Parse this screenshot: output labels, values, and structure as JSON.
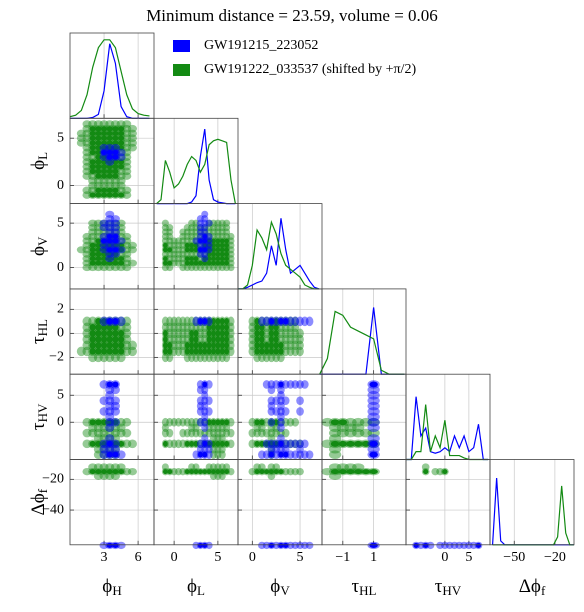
{
  "chart_data": {
    "type": "corner",
    "title": "Minimum distance = 23.59, volume = 0.06",
    "series": [
      {
        "name": "GW191215_223052",
        "color": "#0000ff",
        "density": [
          [
            0,
            0,
            0,
            0,
            0.01,
            0.05,
            0.35,
            0.95,
            0.7,
            0.15,
            0.02,
            0,
            0,
            0,
            0
          ],
          [
            0,
            0,
            0,
            0,
            0,
            0,
            0,
            0,
            0.02,
            0.1,
            0.6,
            0.95,
            0.3,
            0.05,
            0.02,
            0.01,
            0,
            0,
            0
          ],
          [
            0,
            0,
            0.02,
            0.05,
            0.08,
            0.1,
            0.2,
            0.55,
            0.3,
            0.9,
            0.5,
            0.2,
            0.25,
            0.3,
            0.2,
            0.1,
            0.02,
            0
          ],
          [
            0,
            0,
            0,
            0,
            0,
            0,
            0,
            0.85,
            0,
            0,
            0,
            0
          ],
          [
            0,
            0,
            0.8,
            0.3,
            0.4,
            0.1,
            0.08,
            0.1,
            0.15,
            0.1,
            0.3,
            0.15,
            0.3,
            0.1,
            0.15,
            0.45,
            0,
            0
          ],
          [
            0,
            0.85,
            0.05,
            0,
            0,
            0,
            0,
            0,
            0,
            0,
            0,
            0,
            0,
            0,
            0,
            0,
            0,
            0,
            0,
            0,
            0
          ]
        ]
      },
      {
        "name": "GW191222_033537 (shifted by +π/2)",
        "color": "#138a13",
        "density": [
          [
            0.02,
            0.04,
            0.1,
            0.3,
            0.65,
            0.9,
            1.0,
            1.0,
            0.9,
            0.6,
            0.3,
            0.12,
            0.06,
            0.04,
            0.03
          ],
          [
            0,
            0.05,
            0.55,
            0.4,
            0.2,
            0.25,
            0.35,
            0.5,
            0.6,
            0.55,
            0.4,
            0.5,
            0.75,
            0.8,
            0.82,
            0.8,
            0.78,
            0.3,
            0
          ],
          [
            0,
            0,
            0.05,
            0.3,
            0.75,
            0.65,
            0.5,
            0.85,
            0.7,
            0.45,
            0.3,
            0.25,
            0.2,
            0.15,
            0.05,
            0.02,
            0,
            0
          ],
          [
            0,
            0.2,
            0.8,
            0.75,
            0.6,
            0.55,
            0.5,
            0.45,
            0.05,
            0,
            0,
            0
          ],
          [
            0,
            0,
            0.1,
            0.1,
            0.7,
            0.1,
            0.3,
            0.15,
            0.5,
            0.05,
            0.05,
            0.05,
            0.02,
            0,
            0,
            0,
            0,
            0
          ],
          [
            0,
            0,
            0,
            0,
            0,
            0,
            0,
            0,
            0,
            0,
            0,
            0,
            0,
            0,
            0,
            0,
            0.1,
            0.75,
            0.15,
            0,
            0
          ]
        ]
      }
    ],
    "parameters": [
      {
        "symbol": "ϕ",
        "sub": "H",
        "xlim": [
          0,
          7.4
        ],
        "xticks": [
          3,
          6
        ],
        "x": [
          0,
          0.5,
          1,
          1.5,
          2,
          2.5,
          3,
          3.5,
          4,
          4.5,
          5,
          5.5,
          6,
          6.5,
          7
        ]
      },
      {
        "symbol": "ϕ",
        "sub": "L",
        "xlim": [
          -2.3,
          7.3
        ],
        "xticks": [
          0,
          5
        ],
        "ylim": [
          -1.9,
          7.1
        ],
        "yticks": [
          5,
          0
        ],
        "x": [
          -2,
          -1.5,
          -1,
          -0.5,
          0,
          0.5,
          1,
          1.5,
          2,
          2.5,
          3,
          3.5,
          4,
          4.5,
          5,
          5.5,
          6,
          6.5,
          7
        ]
      },
      {
        "symbol": "ϕ",
        "sub": "V",
        "xlim": [
          -1.5,
          7.3
        ],
        "xticks": [
          0,
          5
        ],
        "ylim": [
          -2.4,
          7.2
        ],
        "yticks": [
          5,
          0
        ],
        "x": [
          -1.5,
          -1,
          -0.5,
          0,
          0.5,
          1,
          1.5,
          2,
          2.5,
          3,
          3.5,
          4,
          4.5,
          5,
          5.5,
          6,
          6.5,
          7
        ]
      },
      {
        "symbol": "τ",
        "sub": "HL",
        "xlim": [
          -2.35,
          3.1
        ],
        "xticks": [
          {
            "value": -1,
            "label": "−1"
          },
          1
        ],
        "ylim": [
          -3.4,
          3.7
        ],
        "yticks": [
          2,
          0,
          {
            "value": -2,
            "label": "−2"
          }
        ],
        "x": [
          -2.5,
          -2,
          -1.5,
          -1,
          -0.5,
          0,
          0.5,
          1,
          1.5,
          2,
          2.5,
          3
        ]
      },
      {
        "symbol": "τ",
        "sub": "HV",
        "xlim": [
          -8.1,
          9.4
        ],
        "xticks": [
          0,
          5
        ],
        "ylim": [
          -6.9,
          8.9
        ],
        "yticks": [
          5,
          0
        ],
        "x": [
          -8,
          -7,
          -6,
          -5,
          -4,
          -3,
          -2,
          -1,
          0,
          1,
          2,
          3,
          4,
          5,
          6,
          7,
          8,
          9
        ]
      },
      {
        "symbol": "Δϕ",
        "sub": "f",
        "xlim": [
          -67.9,
          -5.9
        ],
        "xticks": [
          {
            "value": -50,
            "label": "−50"
          },
          {
            "value": -20,
            "label": "−20"
          }
        ],
        "ylim": [
          -62.6,
          -7.1
        ],
        "yticks": [
          {
            "value": -20,
            "label": "−20"
          },
          {
            "value": -40,
            "label": "−40"
          }
        ],
        "x": [
          -66,
          -63,
          -60,
          -57,
          -54,
          -51,
          -48,
          -45,
          -42,
          -39,
          -36,
          -33,
          -30,
          -27,
          -24,
          -21,
          -18,
          -15,
          -12,
          -9,
          -6
        ]
      }
    ]
  }
}
